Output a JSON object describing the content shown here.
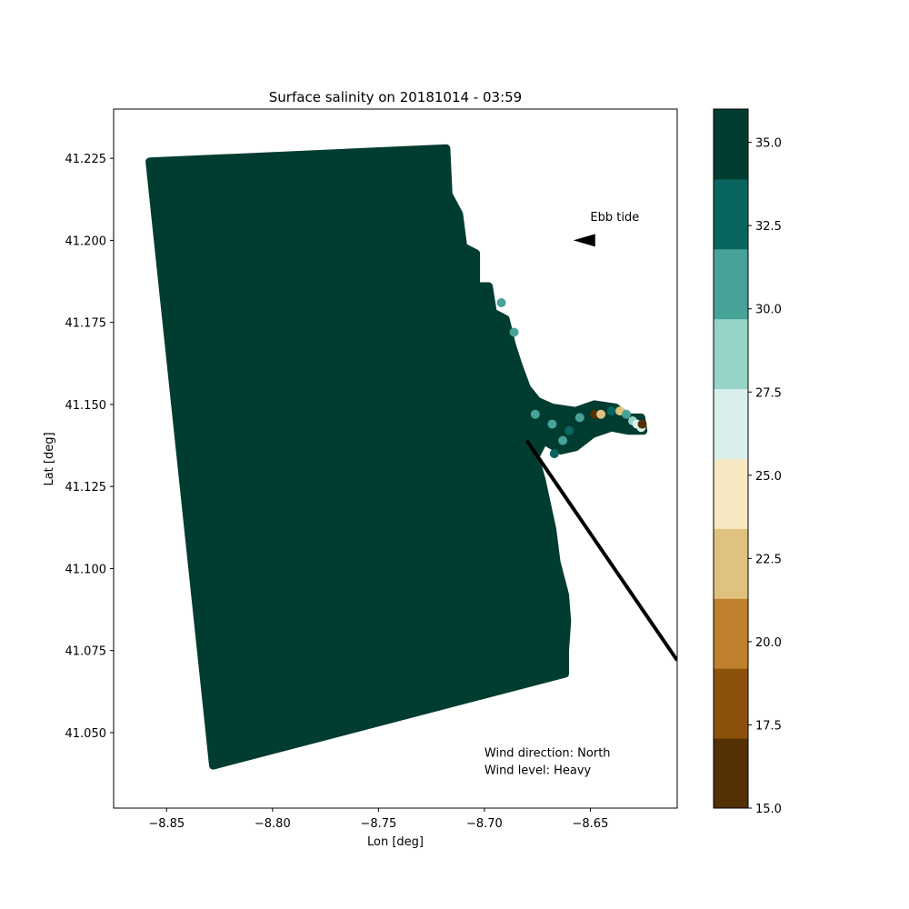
{
  "chart_data": {
    "type": "scatter",
    "title": "Surface salinity on 20181014 - 03:59",
    "xlabel": "Lon [deg]",
    "ylabel": "Lat [deg]",
    "xlim": [
      -8.875,
      -8.609
    ],
    "ylim": [
      41.027,
      41.24
    ],
    "x_ticks": [
      "−8.85",
      "−8.80",
      "−8.75",
      "−8.70",
      "−8.65"
    ],
    "x_tick_values": [
      -8.85,
      -8.8,
      -8.75,
      -8.7,
      -8.65
    ],
    "y_ticks": [
      "41.050",
      "41.075",
      "41.100",
      "41.125",
      "41.150",
      "41.175",
      "41.200",
      "41.225"
    ],
    "y_tick_values": [
      41.05,
      41.075,
      41.1,
      41.125,
      41.15,
      41.175,
      41.2,
      41.225
    ],
    "grid": false,
    "domain_outline": [
      [
        -8.858,
        41.224
      ],
      [
        -8.718,
        41.228
      ],
      [
        -8.717,
        41.214
      ],
      [
        -8.712,
        41.208
      ],
      [
        -8.71,
        41.198
      ],
      [
        -8.704,
        41.196
      ],
      [
        -8.704,
        41.186
      ],
      [
        -8.698,
        41.186
      ],
      [
        -8.696,
        41.178
      ],
      [
        -8.69,
        41.176
      ],
      [
        -8.687,
        41.168
      ],
      [
        -8.684,
        41.162
      ],
      [
        -8.68,
        41.155
      ],
      [
        -8.675,
        41.151
      ],
      [
        -8.668,
        41.149
      ],
      [
        -8.657,
        41.148
      ],
      [
        -8.648,
        41.15
      ],
      [
        -8.638,
        41.149
      ],
      [
        -8.632,
        41.146
      ],
      [
        -8.626,
        41.146
      ],
      [
        -8.625,
        41.142
      ],
      [
        -8.632,
        41.142
      ],
      [
        -8.64,
        41.143
      ],
      [
        -8.649,
        41.141
      ],
      [
        -8.657,
        41.137
      ],
      [
        -8.664,
        41.136
      ],
      [
        -8.672,
        41.139
      ],
      [
        -8.676,
        41.134
      ],
      [
        -8.673,
        41.127
      ],
      [
        -8.671,
        41.121
      ],
      [
        -8.668,
        41.112
      ],
      [
        -8.666,
        41.102
      ],
      [
        -8.662,
        41.092
      ],
      [
        -8.661,
        41.084
      ],
      [
        -8.662,
        41.075
      ],
      [
        -8.662,
        41.068
      ],
      [
        -8.828,
        41.04
      ]
    ],
    "fill_salinity": 35.5,
    "plume_points": [
      {
        "lon": -8.676,
        "lat": 41.147,
        "salinity": 31
      },
      {
        "lon": -8.668,
        "lat": 41.144,
        "salinity": 31
      },
      {
        "lon": -8.66,
        "lat": 41.142,
        "salinity": 33
      },
      {
        "lon": -8.655,
        "lat": 41.146,
        "salinity": 31
      },
      {
        "lon": -8.648,
        "lat": 41.147,
        "salinity": 16
      },
      {
        "lon": -8.645,
        "lat": 41.147,
        "salinity": 22
      },
      {
        "lon": -8.64,
        "lat": 41.148,
        "salinity": 33
      },
      {
        "lon": -8.636,
        "lat": 41.148,
        "salinity": 23
      },
      {
        "lon": -8.633,
        "lat": 41.147,
        "salinity": 31
      },
      {
        "lon": -8.63,
        "lat": 41.145,
        "salinity": 29
      },
      {
        "lon": -8.628,
        "lat": 41.144,
        "salinity": 27
      },
      {
        "lon": -8.626,
        "lat": 41.143,
        "salinity": 26
      },
      {
        "lon": -8.6255,
        "lat": 41.144,
        "salinity": 17
      },
      {
        "lon": -8.692,
        "lat": 41.181,
        "salinity": 31
      },
      {
        "lon": -8.686,
        "lat": 41.172,
        "salinity": 31
      },
      {
        "lon": -8.663,
        "lat": 41.139,
        "salinity": 31
      },
      {
        "lon": -8.667,
        "lat": 41.135,
        "salinity": 33
      }
    ],
    "section_line": [
      [
        -8.68,
        41.139
      ],
      [
        -8.609,
        41.072
      ]
    ],
    "annotations": {
      "ebb_tide": {
        "text": "Ebb tide",
        "lon": -8.65,
        "lat": 41.206
      },
      "ebb_arrow": {
        "from": [
          -8.65,
          41.2
        ],
        "to": [
          -8.658,
          41.2
        ]
      },
      "wind_direction": "Wind direction: North",
      "wind_level": "Wind level: Heavy",
      "wind_text_pos": [
        -8.7,
        41.038
      ]
    },
    "colorbar": {
      "range": [
        15.0,
        36.0
      ],
      "ticks": [
        "15.0",
        "17.5",
        "20.0",
        "22.5",
        "25.0",
        "27.5",
        "30.0",
        "32.5",
        "35.0"
      ],
      "tick_values": [
        15.0,
        17.5,
        20.0,
        22.5,
        25.0,
        27.5,
        30.0,
        32.5,
        35.0
      ],
      "colors": [
        "#543005",
        "#8c510a",
        "#bf812d",
        "#dfc27d",
        "#f6e8c3",
        "#d8efeb",
        "#96d4c8",
        "#47a398",
        "#08665f",
        "#003c30"
      ]
    }
  }
}
